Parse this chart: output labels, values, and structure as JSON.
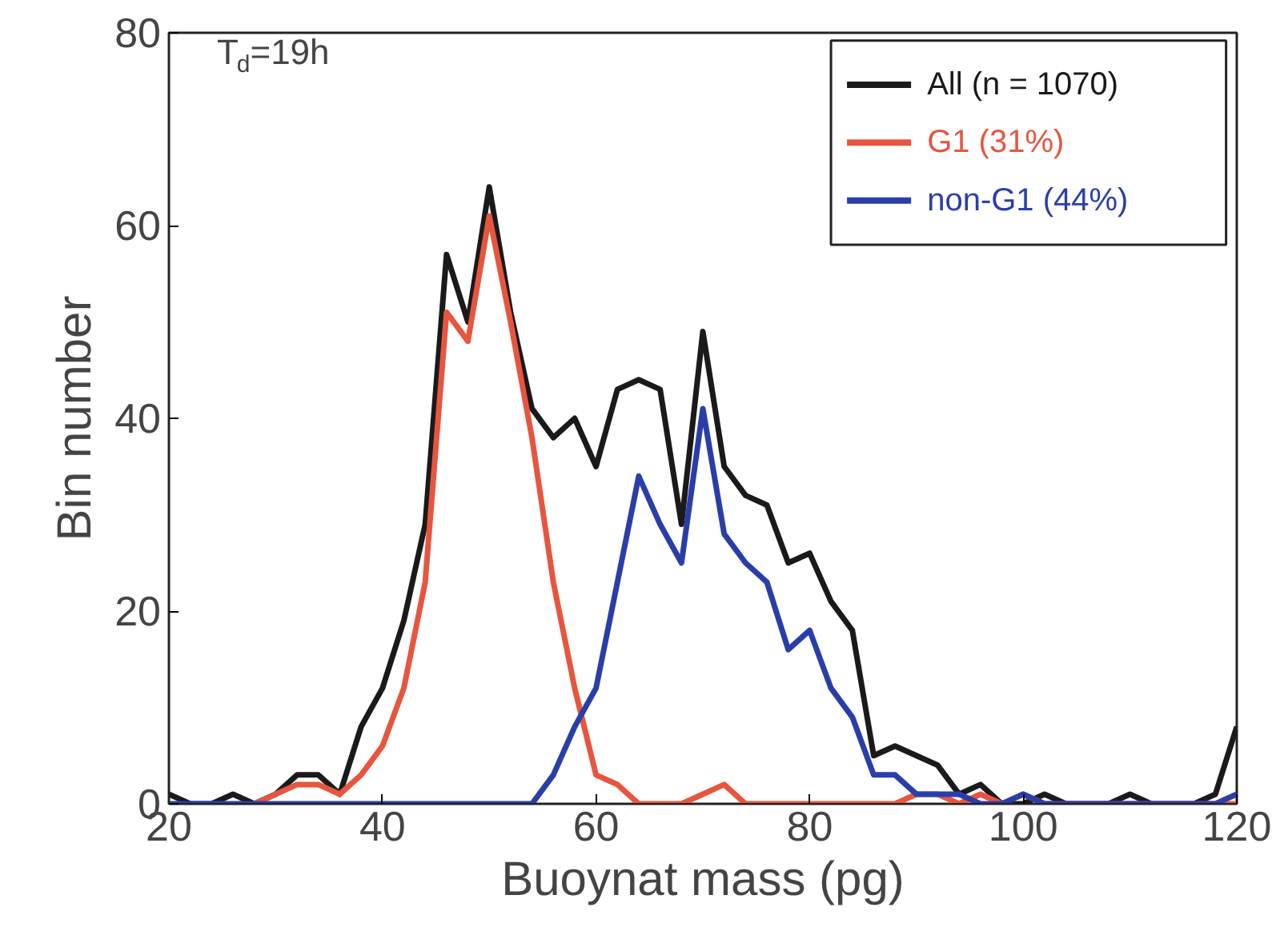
{
  "chart_data": {
    "type": "line",
    "xlabel": "Buoynat mass (pg)",
    "ylabel": "Bin number",
    "x": [
      20,
      22,
      24,
      26,
      28,
      30,
      32,
      34,
      36,
      38,
      40,
      42,
      44,
      46,
      48,
      50,
      52,
      54,
      56,
      58,
      60,
      62,
      64,
      66,
      68,
      70,
      72,
      74,
      76,
      78,
      80,
      82,
      84,
      86,
      88,
      90,
      92,
      94,
      96,
      98,
      100,
      102,
      104,
      106,
      108,
      110,
      112,
      114,
      116,
      118,
      120
    ],
    "series": [
      {
        "name": "All (n = 1070)",
        "color": "#1a1a1a",
        "values": [
          1,
          0,
          0,
          1,
          0,
          1,
          3,
          3,
          1,
          8,
          12,
          19,
          29,
          57,
          50,
          64,
          51,
          41,
          38,
          40,
          35,
          43,
          44,
          43,
          29,
          49,
          35,
          32,
          31,
          25,
          26,
          21,
          18,
          5,
          6,
          5,
          4,
          1,
          2,
          0,
          0,
          1,
          0,
          0,
          0,
          1,
          0,
          0,
          0,
          1,
          8
        ]
      },
      {
        "name": "G1 (31%)",
        "color": "#e8553e",
        "x": [
          28,
          30,
          32,
          34,
          36,
          38,
          40,
          42,
          44,
          46,
          48,
          50,
          52,
          54,
          56,
          58,
          60,
          62,
          64,
          66,
          68,
          70,
          72,
          74,
          76,
          78,
          80,
          82,
          84,
          86,
          88,
          90,
          92,
          94,
          96,
          98,
          100,
          102,
          104,
          106,
          108,
          110,
          112,
          114,
          116,
          118,
          120
        ],
        "values": [
          0,
          1,
          2,
          2,
          1,
          3,
          6,
          12,
          23,
          51,
          48,
          61,
          50,
          38,
          23,
          12,
          3,
          2,
          0,
          0,
          0,
          1,
          2,
          0,
          0,
          0,
          0,
          0,
          0,
          0,
          0,
          1,
          1,
          0,
          1,
          0,
          1,
          0,
          0,
          0,
          0,
          0,
          0,
          0,
          0,
          0,
          0
        ]
      },
      {
        "name": "non-G1 (44%)",
        "color": "#2a3eaa",
        "values": [
          0,
          0,
          0,
          0,
          0,
          0,
          0,
          0,
          0,
          0,
          0,
          0,
          0,
          0,
          0,
          0,
          0,
          0,
          3,
          8,
          12,
          23,
          34,
          29,
          25,
          41,
          28,
          25,
          23,
          16,
          18,
          12,
          9,
          3,
          3,
          1,
          1,
          1,
          0,
          0,
          1,
          0,
          0,
          0,
          0,
          0,
          0,
          0,
          0,
          0,
          1
        ]
      }
    ],
    "xlim": [
      20,
      120
    ],
    "xticks": [
      20,
      40,
      60,
      80,
      100,
      120
    ],
    "ylim": [
      0,
      80
    ],
    "yticks": [
      0,
      20,
      40,
      60,
      80
    ],
    "grid": false,
    "legend": "top right",
    "marker": "none",
    "line_style": "solid",
    "annotations": [
      "T$_{d}$=19h"
    ]
  }
}
